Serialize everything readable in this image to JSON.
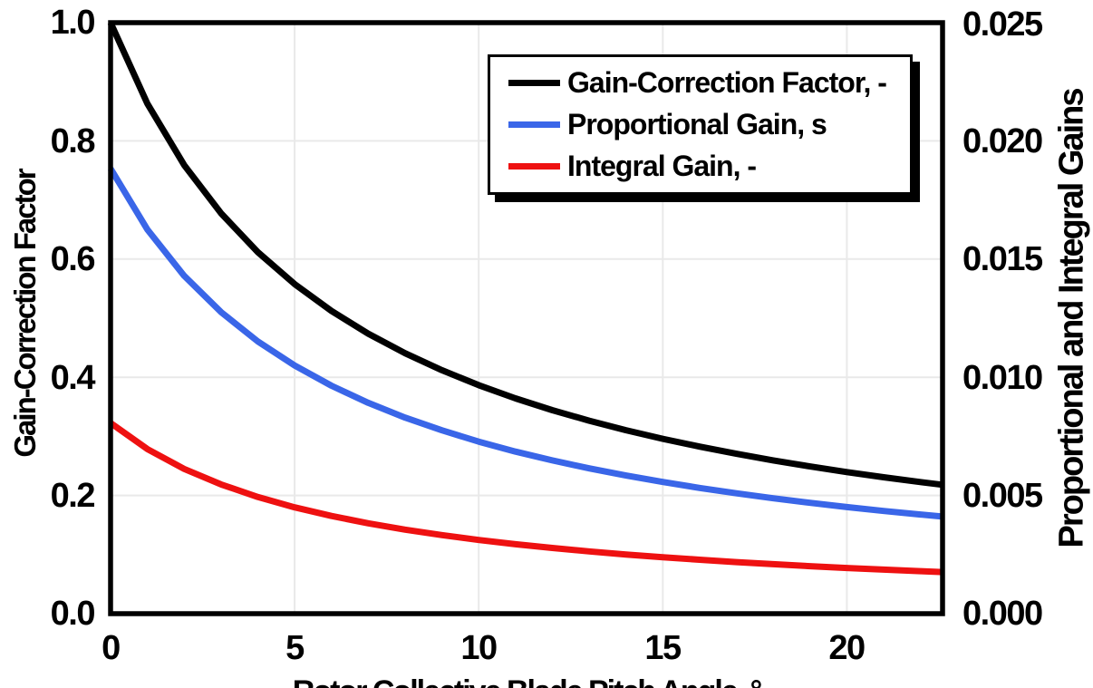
{
  "colors": {
    "black": "#000000",
    "blue": "#3a66e8",
    "red": "#ee1111",
    "grid": "#e9e9e9",
    "frame": "#000000",
    "background": "#ffffff"
  },
  "chart_data": {
    "type": "line",
    "title": "",
    "xlabel": "Rotor Collective Blade Pitch Angle, °",
    "ylabel_left": "Gain-Correction Factor",
    "ylabel_right": "Proportional and Integral Gains",
    "xlim": [
      0,
      22.6
    ],
    "ylim_left": [
      0.0,
      1.0
    ],
    "ylim_right": [
      0.0,
      0.025
    ],
    "grid": true,
    "x_ticks": [
      "0",
      "5",
      "10",
      "15",
      "20"
    ],
    "x_tick_values": [
      0,
      5,
      10,
      15,
      20
    ],
    "y_left_ticks": [
      "1.0",
      "0.8",
      "0.6",
      "0.4",
      "0.2",
      "0.0"
    ],
    "y_left_tick_values": [
      1.0,
      0.8,
      0.6,
      0.4,
      0.2,
      0.0
    ],
    "y_right_ticks": [
      "0.025",
      "0.020",
      "0.015",
      "0.010",
      "0.005",
      "0.000"
    ],
    "y_right_tick_values": [
      0.025,
      0.02,
      0.015,
      0.01,
      0.005,
      0.0
    ],
    "legend_position": "top-right",
    "x": [
      0,
      1,
      2,
      3,
      4,
      5,
      6,
      7,
      8,
      9,
      10,
      11,
      12,
      13,
      14,
      15,
      16,
      17,
      18,
      19,
      20,
      21,
      22,
      22.6
    ],
    "series": [
      {
        "name": "Gain-Correction Factor, -",
        "color": "#000000",
        "axis": "left",
        "values": [
          1.0,
          0.8631,
          0.7591,
          0.6775,
          0.6117,
          0.5576,
          0.5123,
          0.4738,
          0.4406,
          0.4119,
          0.3866,
          0.3642,
          0.3443,
          0.3265,
          0.3104,
          0.2959,
          0.2826,
          0.2705,
          0.2593,
          0.2491,
          0.2396,
          0.2308,
          0.2227,
          0.2181
        ]
      },
      {
        "name": "Proportional Gain, s",
        "color": "#3a66e8",
        "axis": "right",
        "values": [
          0.018827,
          0.01625,
          0.014291,
          0.012755,
          0.011516,
          0.010498,
          0.009645,
          0.00892,
          0.008295,
          0.007755,
          0.007279,
          0.006857,
          0.006482,
          0.006147,
          0.005844,
          0.005571,
          0.00532,
          0.005093,
          0.004882,
          0.00469,
          0.004511,
          0.004345,
          0.004193,
          0.004106
        ]
      },
      {
        "name": "Integral Gain, -",
        "color": "#ee1111",
        "axis": "right",
        "values": [
          0.008069,
          0.006964,
          0.006125,
          0.005467,
          0.004936,
          0.004499,
          0.004134,
          0.003823,
          0.003555,
          0.003323,
          0.003119,
          0.002939,
          0.002778,
          0.002634,
          0.002505,
          0.002388,
          0.00228,
          0.002183,
          0.002092,
          0.00201,
          0.001933,
          0.001862,
          0.001797,
          0.00176
        ]
      }
    ]
  }
}
